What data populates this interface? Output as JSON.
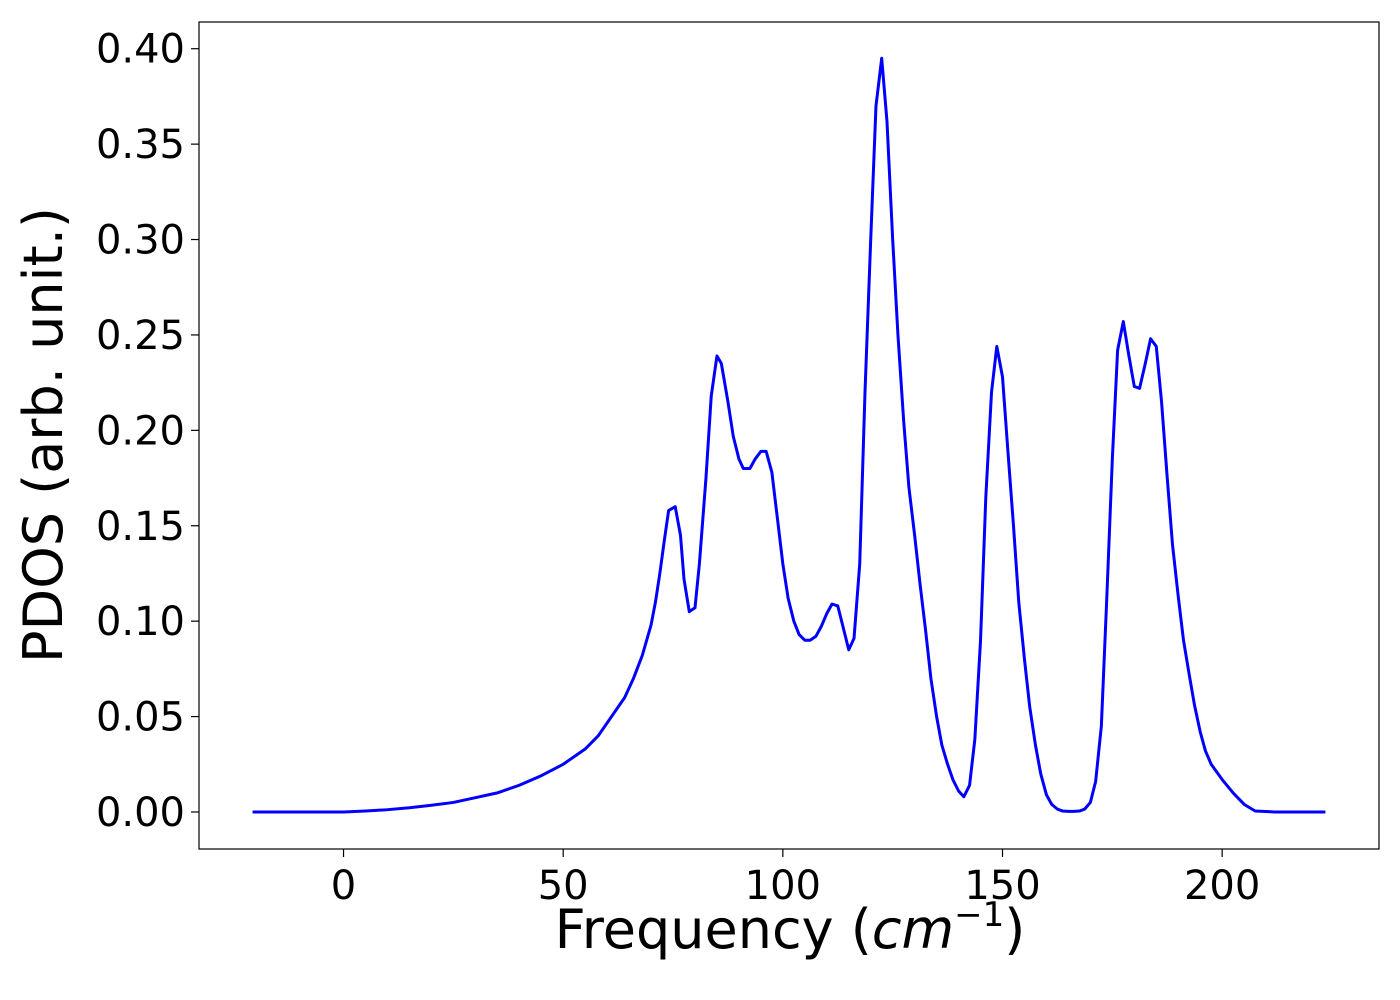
{
  "chart_data": {
    "type": "line",
    "xlabel": [
      "Frequency (",
      "cm",
      "−1",
      ")"
    ],
    "ylabel": "PDOS (arb. unit.)",
    "xlim": [
      -32.9,
      235.7
    ],
    "ylim": [
      -0.0194,
      0.414
    ],
    "xticks": [
      0,
      50,
      100,
      150,
      200
    ],
    "yticks": [
      {
        "value": 0,
        "label": "0.00"
      },
      {
        "value": 0.05,
        "label": "0.05"
      },
      {
        "value": 0.1,
        "label": "0.10"
      },
      {
        "value": 0.15,
        "label": "0.15"
      },
      {
        "value": 0.2,
        "label": "0.20"
      },
      {
        "value": 0.25,
        "label": "0.25"
      },
      {
        "value": 0.3,
        "label": "0.30"
      },
      {
        "value": 0.35,
        "label": "0.35"
      },
      {
        "value": 0.4,
        "label": "0.40"
      }
    ],
    "x": [
      -20.7,
      -10,
      0,
      5,
      10,
      15,
      20,
      25,
      30,
      35,
      40,
      45,
      50,
      55,
      58,
      61,
      64,
      66,
      68,
      70,
      71,
      72,
      73,
      74,
      75.5,
      76.7,
      77.5,
      78.7,
      80,
      81,
      82.5,
      83.7,
      85,
      86,
      87.5,
      88.7,
      90,
      91,
      92.5,
      93.7,
      95,
      96.2,
      97.5,
      98.7,
      100,
      101.2,
      102.5,
      103.7,
      105,
      106.2,
      107.5,
      108.7,
      110,
      111.2,
      112.5,
      113.7,
      115,
      116.2,
      117.5,
      118.7,
      120,
      121.2,
      122.5,
      123.7,
      125,
      126.2,
      127.5,
      128.7,
      130,
      131.2,
      132.5,
      133.7,
      135,
      136.2,
      137.5,
      138.7,
      140,
      141.2,
      142.5,
      143.7,
      145,
      146.2,
      147.5,
      148.7,
      150,
      151.2,
      152.5,
      153.7,
      155,
      156.2,
      157.5,
      158.7,
      160,
      161.2,
      162.5,
      163.7,
      165,
      166.2,
      167.5,
      168.7,
      170,
      171.2,
      172.5,
      173.7,
      175,
      176.2,
      177.5,
      178.7,
      180,
      181.2,
      182.5,
      183.7,
      185,
      186.2,
      187.5,
      188.7,
      190,
      191.2,
      192.5,
      193.7,
      195,
      196.2,
      197.5,
      200,
      202.5,
      205,
      207.5,
      212,
      223.5
    ],
    "series": [
      {
        "color": "#0000ff",
        "values": [
          0,
          0,
          0,
          0.0005,
          0.0012,
          0.0022,
          0.0035,
          0.005,
          0.0075,
          0.01,
          0.014,
          0.019,
          0.025,
          0.033,
          0.04,
          0.05,
          0.06,
          0.07,
          0.082,
          0.098,
          0.11,
          0.125,
          0.142,
          0.158,
          0.16,
          0.145,
          0.122,
          0.105,
          0.107,
          0.13,
          0.175,
          0.218,
          0.239,
          0.235,
          0.215,
          0.197,
          0.185,
          0.18,
          0.18,
          0.185,
          0.189,
          0.189,
          0.178,
          0.155,
          0.13,
          0.112,
          0.1,
          0.093,
          0.09,
          0.09,
          0.092,
          0.097,
          0.104,
          0.109,
          0.108,
          0.097,
          0.085,
          0.091,
          0.13,
          0.22,
          0.3,
          0.37,
          0.395,
          0.362,
          0.3,
          0.25,
          0.205,
          0.17,
          0.145,
          0.12,
          0.095,
          0.07,
          0.05,
          0.035,
          0.025,
          0.017,
          0.011,
          0.008,
          0.014,
          0.038,
          0.09,
          0.165,
          0.22,
          0.244,
          0.228,
          0.19,
          0.15,
          0.11,
          0.08,
          0.055,
          0.035,
          0.02,
          0.009,
          0.004,
          0.0015,
          0.0005,
          0.0003,
          0.0003,
          0.0005,
          0.0015,
          0.005,
          0.016,
          0.045,
          0.11,
          0.185,
          0.242,
          0.257,
          0.24,
          0.223,
          0.222,
          0.235,
          0.248,
          0.244,
          0.215,
          0.175,
          0.14,
          0.113,
          0.09,
          0.072,
          0.056,
          0.042,
          0.032,
          0.025,
          0.017,
          0.01,
          0.004,
          0.0005,
          0,
          0
        ]
      }
    ]
  }
}
